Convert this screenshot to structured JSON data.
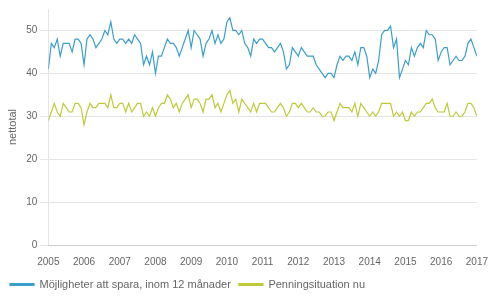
{
  "chart_data": {
    "type": "line",
    "title": "",
    "ylabel": "nettotal",
    "x": [
      2005,
      2005.0833,
      2005.1667,
      2005.25,
      2005.3333,
      2005.4167,
      2005.5,
      2005.5833,
      2005.6667,
      2005.75,
      2005.8333,
      2005.9167,
      2006,
      2006.0833,
      2006.1667,
      2006.25,
      2006.3333,
      2006.4167,
      2006.5,
      2006.5833,
      2006.6667,
      2006.75,
      2006.8333,
      2006.9167,
      2007,
      2007.0833,
      2007.1667,
      2007.25,
      2007.3333,
      2007.4167,
      2007.5,
      2007.5833,
      2007.6667,
      2007.75,
      2007.8333,
      2007.9167,
      2008,
      2008.0833,
      2008.1667,
      2008.25,
      2008.3333,
      2008.4167,
      2008.5,
      2008.5833,
      2008.6667,
      2008.75,
      2008.8333,
      2008.9167,
      2009,
      2009.0833,
      2009.1667,
      2009.25,
      2009.3333,
      2009.4167,
      2009.5,
      2009.5833,
      2009.6667,
      2009.75,
      2009.8333,
      2009.9167,
      2010,
      2010.0833,
      2010.1667,
      2010.25,
      2010.3333,
      2010.4167,
      2010.5,
      2010.5833,
      2010.6667,
      2010.75,
      2010.8333,
      2010.9167,
      2011,
      2011.0833,
      2011.1667,
      2011.25,
      2011.3333,
      2011.4167,
      2011.5,
      2011.5833,
      2011.6667,
      2011.75,
      2011.8333,
      2011.9167,
      2012,
      2012.0833,
      2012.1667,
      2012.25,
      2012.3333,
      2012.4167,
      2012.5,
      2012.5833,
      2012.6667,
      2012.75,
      2012.8333,
      2012.9167,
      2013,
      2013.0833,
      2013.1667,
      2013.25,
      2013.3333,
      2013.4167,
      2013.5,
      2013.5833,
      2013.6667,
      2013.75,
      2013.8333,
      2013.9167,
      2014,
      2014.0833,
      2014.1667,
      2014.25,
      2014.3333,
      2014.4167,
      2014.5,
      2014.5833,
      2014.6667,
      2014.75,
      2014.8333,
      2014.9167,
      2015,
      2015.0833,
      2015.1667,
      2015.25,
      2015.3333,
      2015.4167,
      2015.5,
      2015.5833,
      2015.6667,
      2015.75,
      2015.8333,
      2015.9167,
      2016,
      2016.0833,
      2016.1667,
      2016.25,
      2016.3333,
      2016.4167,
      2016.5,
      2016.5833,
      2016.6667,
      2016.75,
      2016.8333,
      2016.9167,
      2017
    ],
    "series": [
      {
        "name": "Möjligheter att spara, inom 12 månader",
        "color": "#3B9FCB",
        "values": [
          41,
          47,
          46,
          48,
          44,
          47,
          47,
          47,
          45,
          48,
          48,
          47,
          42,
          48,
          49,
          48,
          46,
          47,
          48,
          50,
          49,
          52,
          48,
          47,
          48,
          48,
          47,
          48,
          47,
          49,
          48,
          47,
          42,
          44,
          42,
          45,
          40,
          44,
          44,
          46,
          48,
          47,
          47,
          46,
          44,
          46,
          48,
          50,
          46,
          50,
          49,
          48,
          44,
          47,
          48,
          50,
          47,
          49,
          47,
          48,
          52,
          53,
          50,
          50,
          49,
          50,
          47,
          46,
          44,
          48,
          47,
          48,
          48,
          47,
          46,
          46,
          45,
          46,
          47,
          45,
          41,
          42,
          46,
          45,
          44,
          46,
          45,
          44,
          44,
          44,
          42,
          41,
          40,
          39,
          40,
          40,
          39,
          42,
          44,
          43,
          44,
          44,
          43,
          45,
          42,
          46,
          46,
          44,
          39,
          41,
          40,
          43,
          49,
          50,
          50,
          51,
          46,
          48,
          39,
          41,
          43,
          42,
          46,
          44,
          46,
          47,
          46,
          50,
          49,
          49,
          48,
          43,
          45,
          46,
          46,
          42,
          43,
          44,
          43,
          43,
          44,
          47,
          48,
          46,
          44
        ]
      },
      {
        "name": "Penningsituation nu",
        "color": "#BFCA38",
        "values": [
          29,
          31,
          33,
          31,
          30,
          33,
          32,
          31,
          31,
          33,
          33,
          32,
          28,
          31,
          33,
          32,
          32,
          33,
          33,
          33,
          32,
          35,
          32,
          32,
          33,
          33,
          31,
          33,
          31,
          32,
          33,
          33,
          30,
          31,
          30,
          32,
          30,
          32,
          33,
          33,
          35,
          34,
          32,
          33,
          31,
          33,
          34,
          35,
          32,
          34,
          34,
          33,
          31,
          34,
          34,
          35,
          32,
          33,
          31,
          33,
          35,
          36,
          33,
          34,
          31,
          34,
          33,
          32,
          31,
          33,
          31,
          33,
          33,
          33,
          32,
          31,
          31,
          32,
          33,
          32,
          30,
          31,
          33,
          33,
          32,
          33,
          32,
          31,
          31,
          32,
          31,
          31,
          30,
          30,
          31,
          31,
          29,
          31,
          33,
          32,
          32,
          32,
          31,
          33,
          30,
          33,
          32,
          31,
          30,
          31,
          30,
          31,
          33,
          33,
          33,
          33,
          30,
          31,
          30,
          31,
          29,
          29,
          31,
          30,
          31,
          31,
          32,
          33,
          33,
          34,
          32,
          31,
          31,
          31,
          33,
          30,
          30,
          31,
          30,
          30,
          31,
          33,
          33,
          32,
          30
        ]
      }
    ],
    "xlim": [
      2005.0,
      2017.0
    ],
    "xticks": [
      2005,
      2006,
      2007,
      2008,
      2009,
      2010,
      2011,
      2012,
      2013,
      2014,
      2015,
      2016,
      2017
    ],
    "ylim": [
      0,
      55
    ],
    "yticks": [
      0,
      10,
      20,
      30,
      40,
      50
    ],
    "grid": "y",
    "legend": "lower left"
  }
}
